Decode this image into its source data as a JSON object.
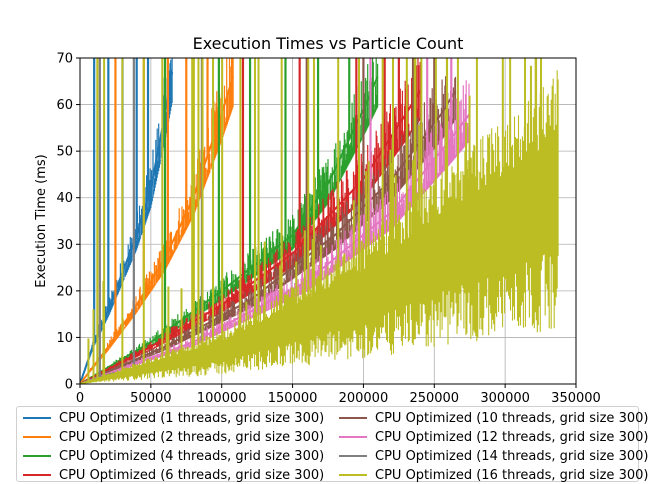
{
  "chart_data": {
    "type": "line",
    "title": "Execution Times vs Particle Count",
    "xlabel": "",
    "ylabel": "Execution Time (ms)",
    "xlim": [
      0,
      350000
    ],
    "ylim": [
      0,
      70
    ],
    "xticks": [
      0,
      50000,
      100000,
      150000,
      200000,
      250000,
      300000,
      350000
    ],
    "yticks": [
      0,
      10,
      20,
      30,
      40,
      50,
      60,
      70
    ],
    "grid": true,
    "legend_position": "bottom",
    "series": [
      {
        "name": "CPU Optimized (1 threads, grid size 300)",
        "color": "#1f77b4",
        "x": [
          0,
          10000,
          20000,
          30000,
          40000,
          50000,
          60000,
          65000
        ],
        "y": [
          0,
          9,
          16,
          24,
          32,
          42,
          58,
          67
        ],
        "spikes": [
          10000,
          20000,
          30000,
          40000,
          48000
        ]
      },
      {
        "name": "CPU Optimized (2 threads, grid size 300)",
        "color": "#ff7f0e",
        "x": [
          0,
          20000,
          40000,
          60000,
          80000,
          100000,
          108000
        ],
        "y": [
          0,
          8,
          17,
          27,
          40,
          58,
          66
        ],
        "spikes": [
          25000,
          45000,
          62000,
          75000,
          90000
        ]
      },
      {
        "name": "CPU Optimized (4 threads, grid size 300)",
        "color": "#2ca02c",
        "x": [
          0,
          50000,
          100000,
          150000,
          175000,
          200000,
          210000
        ],
        "y": [
          0,
          9,
          20,
          32,
          43,
          59,
          66
        ],
        "spikes": [
          60000,
          98000,
          120000,
          145000,
          168000,
          190000
        ]
      },
      {
        "name": "CPU Optimized (6 threads, grid size 300)",
        "color": "#d62728",
        "x": [
          0,
          50000,
          100000,
          150000,
          200000,
          230000,
          240000
        ],
        "y": [
          0,
          8,
          17,
          28,
          44,
          58,
          63
        ],
        "spikes": [
          115000,
          155000,
          195000,
          215000,
          225000
        ]
      },
      {
        "name": "CPU Optimized (10 threads, grid size 300)",
        "color": "#8c564b",
        "x": [
          0,
          60000,
          120000,
          180000,
          220000,
          255000,
          265000
        ],
        "y": [
          0,
          8,
          18,
          32,
          44,
          58,
          63
        ],
        "spikes": [
          160000,
          200000,
          235000,
          250000
        ]
      },
      {
        "name": "CPU Optimized (12 threads, grid size 300)",
        "color": "#e377c2",
        "x": [
          0,
          80000,
          160000,
          220000,
          260000,
          275000
        ],
        "y": [
          0,
          9,
          22,
          37,
          52,
          58
        ],
        "spikes": [
          205000,
          245000,
          262000
        ]
      },
      {
        "name": "CPU Optimized (14 threads, grid size 300)",
        "color": "#7f7f7f",
        "x": [
          0,
          20000,
          50000,
          80000
        ],
        "y": [
          0,
          2,
          4,
          6
        ],
        "spikes": [
          14000,
          38000,
          86000
        ]
      },
      {
        "name": "CPU Optimized (16 threads, grid size 300)",
        "color": "#bcbd22",
        "x": [
          0,
          100000,
          200000,
          250000,
          300000,
          338000
        ],
        "y": [
          0,
          9,
          24,
          35,
          45,
          53
        ],
        "spikes": []
      }
    ]
  }
}
